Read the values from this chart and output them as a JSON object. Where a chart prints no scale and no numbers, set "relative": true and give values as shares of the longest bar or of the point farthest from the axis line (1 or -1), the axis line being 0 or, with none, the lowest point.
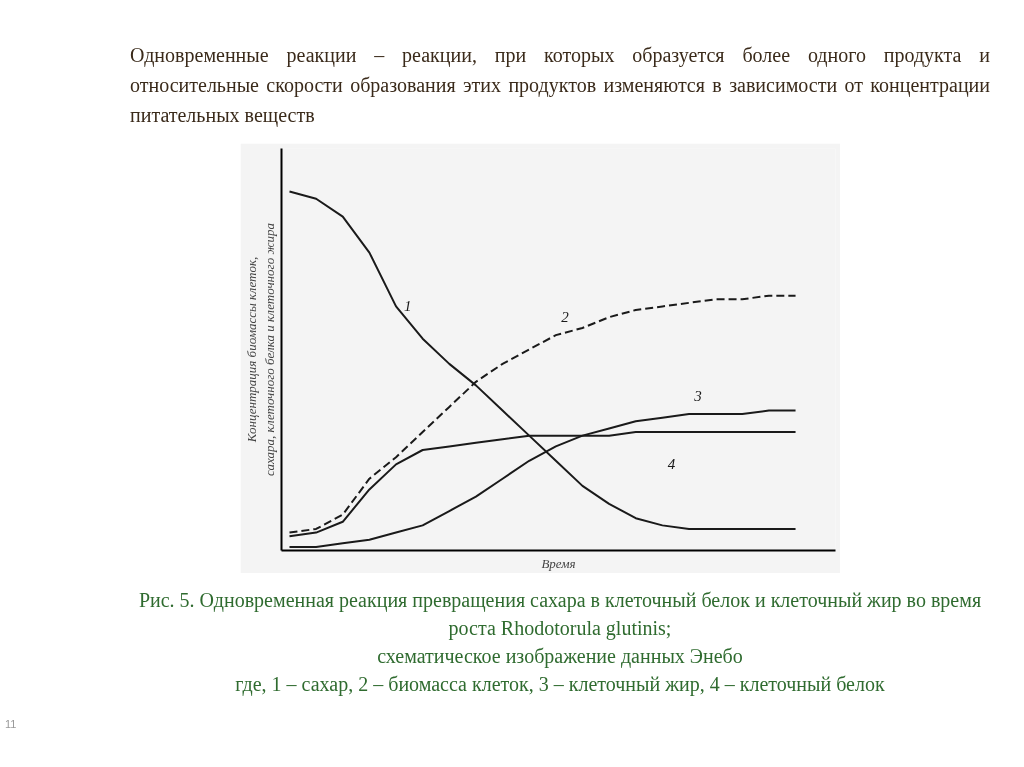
{
  "chart_data": {
    "type": "line",
    "relative": true,
    "title": "Одновременные реакции – реакции, при которых образуется более одного продукта и относительные скорости образования этих продуктов изменяются в зависимости от концентрации питательных веществ",
    "xlabel": "Время",
    "ylabel": "Концентрация биомассы клеток,\nсахара, клеточного белка и клеточного жира",
    "categories": [
      null,
      null,
      null,
      null,
      null,
      null,
      null,
      null,
      null,
      null,
      null,
      null,
      null,
      null,
      null,
      null,
      null,
      null,
      null,
      null
    ],
    "series": [
      {
        "name": "1",
        "color": "#1a1a1a",
        "line_style": "solid",
        "values": [
          1.0,
          0.98,
          0.93,
          0.83,
          0.68,
          0.59,
          0.52,
          0.46,
          0.39,
          0.32,
          0.25,
          0.18,
          0.13,
          0.09,
          0.07,
          0.06,
          0.06,
          0.06,
          0.06,
          0.06
        ]
      },
      {
        "name": "2",
        "color": "#1a1a1a",
        "line_style": "dashed",
        "values": [
          0.05,
          0.06,
          0.1,
          0.2,
          0.26,
          0.33,
          0.4,
          0.47,
          0.52,
          0.56,
          0.6,
          0.62,
          0.65,
          0.67,
          0.68,
          0.69,
          0.7,
          0.7,
          0.71,
          0.71
        ]
      },
      {
        "name": "3",
        "color": "#1a1a1a",
        "line_style": "solid",
        "values": [
          0.01,
          0.01,
          0.02,
          0.03,
          0.05,
          0.07,
          0.11,
          0.15,
          0.2,
          0.25,
          0.29,
          0.32,
          0.34,
          0.36,
          0.37,
          0.38,
          0.38,
          0.38,
          0.39,
          0.39
        ]
      },
      {
        "name": "4",
        "color": "#1a1a1a",
        "line_style": "solid",
        "values": [
          0.04,
          0.05,
          0.08,
          0.17,
          0.24,
          0.28,
          0.29,
          0.3,
          0.31,
          0.32,
          0.32,
          0.32,
          0.32,
          0.33,
          0.33,
          0.33,
          0.33,
          0.33,
          0.33,
          0.33
        ]
      }
    ],
    "annotations": [
      "Рис. 5. Одновременная реакция превращения сахара в клеточный белок и клеточный жир во время роста Rhodotorula glutinis;",
      "схематическое изображение данных Энебо",
      "где, 1 – сахар, 2 – биомасса клеток, 3 – клеточный жир, 4 – клеточный белок",
      "11"
    ]
  }
}
